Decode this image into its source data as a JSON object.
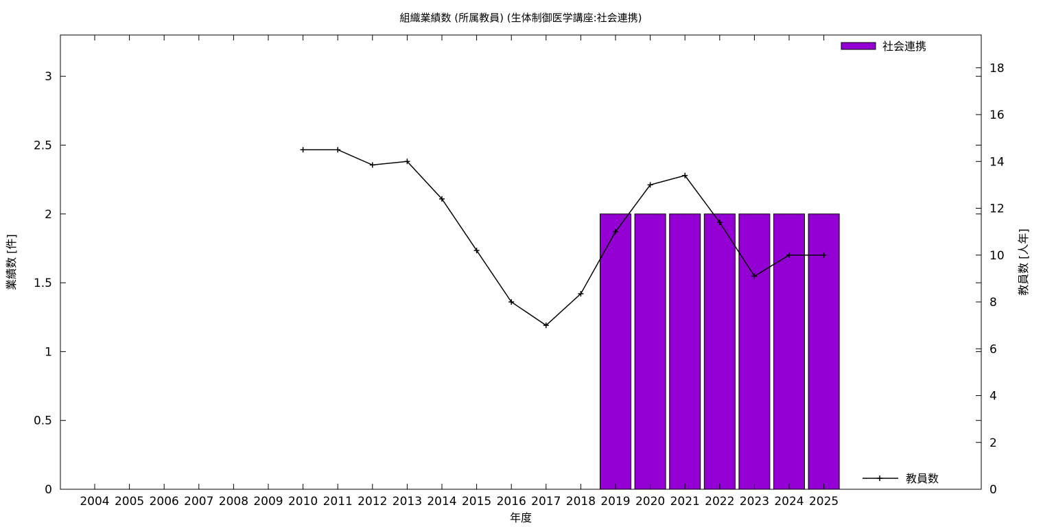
{
  "chart_data": {
    "type": "bar",
    "title": "組織業績数 (所属教員) (生体制御医学講座:社会連携)",
    "xlabel": "年度",
    "ylabel": "業績数 [件]",
    "y2label": "教員数 [人年]",
    "categories": [
      "2004",
      "2005",
      "2006",
      "2007",
      "2008",
      "2009",
      "2010",
      "2011",
      "2012",
      "2013",
      "2014",
      "2015",
      "2016",
      "2017",
      "2018",
      "2019",
      "2020",
      "2021",
      "2022",
      "2023",
      "2024",
      "2025"
    ],
    "ylim": [
      0,
      3.3
    ],
    "yticks": [
      0,
      0.5,
      1,
      1.5,
      2,
      2.5,
      3
    ],
    "ytick_labels": [
      "0",
      "0.5",
      "1",
      "1.5",
      "2",
      "2.5",
      "3"
    ],
    "y2lim": [
      0,
      19.4
    ],
    "y2ticks": [
      0,
      2,
      4,
      6,
      8,
      10,
      12,
      14,
      16,
      18
    ],
    "grid": false,
    "series": [
      {
        "name": "社会連携",
        "type": "bar",
        "axis": "y",
        "color": "#9400d3",
        "values": [
          0,
          0,
          0,
          0,
          0,
          0,
          0,
          0,
          0,
          0,
          0,
          0,
          0,
          0,
          0,
          2,
          2,
          2,
          2,
          2,
          2,
          2
        ]
      },
      {
        "name": "教員数",
        "type": "line",
        "axis": "y2",
        "color": "#000000",
        "values": [
          null,
          null,
          null,
          null,
          null,
          null,
          14.5,
          14.5,
          13.85,
          14.0,
          12.4,
          10.2,
          8.0,
          7.0,
          8.35,
          11.0,
          13.0,
          13.4,
          11.4,
          9.1,
          10.0,
          10.0
        ]
      }
    ],
    "legend": {
      "bar_position": "top-right",
      "line_position": "bottom-right"
    }
  }
}
